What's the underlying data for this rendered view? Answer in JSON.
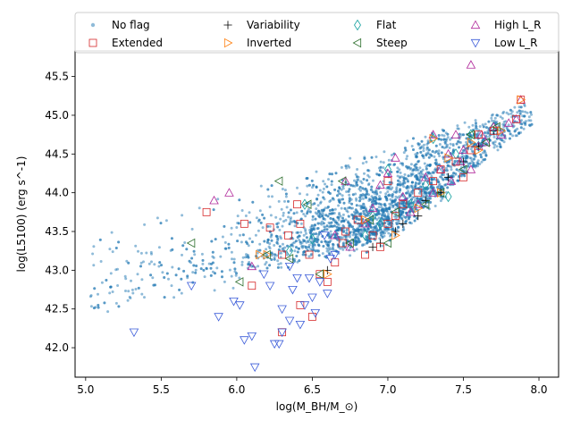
{
  "chart_data": {
    "type": "scatter",
    "title": "",
    "xlabel": "log(M_BH/M_⊙)",
    "ylabel": "log(L5100) (erg s^-1)",
    "xlim": [
      4.93,
      8.13
    ],
    "ylim": [
      41.62,
      45.83
    ],
    "xticks": [
      5.0,
      5.5,
      6.0,
      6.5,
      7.0,
      7.5,
      8.0
    ],
    "xtick_labels": [
      "5.0",
      "5.5",
      "6.0",
      "6.5",
      "7.0",
      "7.5",
      "8.0"
    ],
    "yticks": [
      42.0,
      42.5,
      43.0,
      43.5,
      44.0,
      44.5,
      45.0,
      45.5
    ],
    "ytick_labels": [
      "42.0",
      "42.5",
      "43.0",
      "43.5",
      "44.0",
      "44.5",
      "45.0",
      "45.5"
    ],
    "grid": false,
    "legend_position": "top",
    "legend": [
      {
        "key": "noflag",
        "label": "No flag",
        "color": "#1f77b4",
        "marker": "dot"
      },
      {
        "key": "variability",
        "label": "Variability",
        "color": "#000000",
        "marker": "plus"
      },
      {
        "key": "flat",
        "label": "Flat",
        "color": "#17a2a0",
        "marker": "diamond"
      },
      {
        "key": "highlr",
        "label": "High L_R",
        "color": "#b0279a",
        "marker": "triangle-up"
      },
      {
        "key": "extended",
        "label": "Extended",
        "color": "#d62728",
        "marker": "square"
      },
      {
        "key": "inverted",
        "label": "Inverted",
        "color": "#ff7f0e",
        "marker": "triangle-right"
      },
      {
        "key": "steep",
        "label": "Steep",
        "color": "#2c6e2c",
        "marker": "triangle-left"
      },
      {
        "key": "lowlr",
        "label": "Low L_R",
        "color": "#3a5bd9",
        "marker": "triangle-down"
      }
    ],
    "series": [
      {
        "key": "noflag",
        "name": "No flag",
        "approx_count": 3000,
        "x_range": [
          5.03,
          7.97
        ],
        "y_range": [
          41.75,
          45.25
        ],
        "trend": {
          "x": [
            5.0,
            6.0,
            7.0,
            8.0
          ],
          "y": [
            42.6,
            43.1,
            43.6,
            45.1
          ]
        }
      },
      {
        "key": "variability",
        "name": "Variability",
        "points": [
          [
            6.95,
            43.35
          ],
          [
            7.1,
            43.6
          ],
          [
            7.25,
            43.9
          ],
          [
            7.4,
            44.2
          ],
          [
            7.6,
            44.6
          ],
          [
            6.6,
            43.0
          ],
          [
            7.5,
            44.4
          ],
          [
            7.7,
            44.8
          ],
          [
            7.2,
            43.7
          ],
          [
            6.9,
            43.3
          ],
          [
            7.35,
            44.0
          ],
          [
            7.05,
            43.5
          ]
        ]
      },
      {
        "key": "flat",
        "name": "Flat",
        "points": [
          [
            6.45,
            43.85
          ],
          [
            6.35,
            43.25
          ],
          [
            6.9,
            43.7
          ],
          [
            7.15,
            43.85
          ],
          [
            7.3,
            44.7
          ],
          [
            7.55,
            44.75
          ],
          [
            7.4,
            43.95
          ],
          [
            6.85,
            43.45
          ],
          [
            7.0,
            44.3
          ],
          [
            7.25,
            44.1
          ],
          [
            7.7,
            44.85
          ],
          [
            6.5,
            43.4
          ],
          [
            7.6,
            44.6
          ],
          [
            6.95,
            43.6
          ],
          [
            7.45,
            44.5
          ]
        ]
      },
      {
        "key": "highlr",
        "name": "High L_R",
        "points": [
          [
            7.55,
            45.65
          ],
          [
            5.85,
            43.9
          ],
          [
            5.95,
            44.0
          ],
          [
            6.1,
            43.05
          ],
          [
            6.72,
            44.15
          ],
          [
            6.75,
            43.3
          ],
          [
            6.95,
            44.1
          ],
          [
            7.0,
            44.25
          ],
          [
            7.05,
            44.45
          ],
          [
            7.2,
            43.85
          ],
          [
            7.3,
            44.75
          ],
          [
            7.35,
            44.3
          ],
          [
            7.4,
            44.5
          ],
          [
            7.45,
            44.75
          ],
          [
            7.5,
            44.55
          ],
          [
            7.6,
            44.6
          ],
          [
            7.62,
            44.75
          ],
          [
            7.7,
            44.85
          ],
          [
            7.75,
            44.75
          ],
          [
            7.8,
            44.9
          ],
          [
            7.85,
            44.95
          ],
          [
            7.88,
            45.2
          ],
          [
            6.85,
            43.6
          ],
          [
            7.1,
            43.95
          ],
          [
            7.25,
            44.2
          ],
          [
            7.55,
            44.3
          ],
          [
            7.65,
            44.65
          ],
          [
            7.3,
            44.0
          ],
          [
            7.48,
            44.4
          ],
          [
            6.65,
            43.45
          ],
          [
            6.9,
            43.8
          ],
          [
            7.15,
            43.75
          ],
          [
            7.42,
            44.15
          ]
        ]
      },
      {
        "key": "extended",
        "name": "Extended",
        "points": [
          [
            5.8,
            43.75
          ],
          [
            6.05,
            43.6
          ],
          [
            6.22,
            43.55
          ],
          [
            6.3,
            43.2
          ],
          [
            6.34,
            43.45
          ],
          [
            6.4,
            43.85
          ],
          [
            6.42,
            43.6
          ],
          [
            6.48,
            43.2
          ],
          [
            6.5,
            42.4
          ],
          [
            6.55,
            42.95
          ],
          [
            6.6,
            42.85
          ],
          [
            6.65,
            43.1
          ],
          [
            6.7,
            43.35
          ],
          [
            6.72,
            43.5
          ],
          [
            6.8,
            43.65
          ],
          [
            6.85,
            43.2
          ],
          [
            6.9,
            43.45
          ],
          [
            6.95,
            43.3
          ],
          [
            7.0,
            43.6
          ],
          [
            7.05,
            43.7
          ],
          [
            7.1,
            43.85
          ],
          [
            7.2,
            44.0
          ],
          [
            7.3,
            44.15
          ],
          [
            7.35,
            44.3
          ],
          [
            7.45,
            44.4
          ],
          [
            7.5,
            44.2
          ],
          [
            7.55,
            44.55
          ],
          [
            7.6,
            44.75
          ],
          [
            7.7,
            44.8
          ],
          [
            7.85,
            44.95
          ],
          [
            7.88,
            45.2
          ],
          [
            6.42,
            42.55
          ],
          [
            6.1,
            42.8
          ],
          [
            6.3,
            42.2
          ],
          [
            7.0,
            44.15
          ]
        ]
      },
      {
        "key": "inverted",
        "name": "Inverted",
        "points": [
          [
            6.15,
            43.2
          ],
          [
            6.2,
            43.2
          ],
          [
            6.6,
            42.95
          ],
          [
            7.05,
            43.45
          ],
          [
            7.2,
            43.8
          ],
          [
            7.35,
            44.0
          ],
          [
            7.4,
            44.45
          ],
          [
            7.55,
            44.65
          ],
          [
            7.6,
            44.55
          ],
          [
            7.75,
            44.8
          ],
          [
            7.88,
            45.2
          ],
          [
            6.85,
            43.65
          ],
          [
            7.3,
            44.7
          ]
        ]
      },
      {
        "key": "steep",
        "name": "Steep",
        "points": [
          [
            5.7,
            43.35
          ],
          [
            6.02,
            42.85
          ],
          [
            6.2,
            43.2
          ],
          [
            6.28,
            44.15
          ],
          [
            6.35,
            43.15
          ],
          [
            6.47,
            43.85
          ],
          [
            6.55,
            42.95
          ],
          [
            6.7,
            44.15
          ],
          [
            6.75,
            43.35
          ],
          [
            6.88,
            43.65
          ],
          [
            7.0,
            43.35
          ],
          [
            7.05,
            43.75
          ],
          [
            7.25,
            43.85
          ],
          [
            7.35,
            44.0
          ],
          [
            7.5,
            44.3
          ],
          [
            7.55,
            44.75
          ],
          [
            7.65,
            44.65
          ],
          [
            7.72,
            44.85
          ]
        ]
      },
      {
        "key": "lowlr",
        "name": "Low L_R",
        "points": [
          [
            5.32,
            42.2
          ],
          [
            5.7,
            42.8
          ],
          [
            5.88,
            42.4
          ],
          [
            5.98,
            42.6
          ],
          [
            6.02,
            42.55
          ],
          [
            6.05,
            42.1
          ],
          [
            6.1,
            42.15
          ],
          [
            6.12,
            41.75
          ],
          [
            6.18,
            42.95
          ],
          [
            6.22,
            42.8
          ],
          [
            6.25,
            42.05
          ],
          [
            6.3,
            42.2
          ],
          [
            6.3,
            42.5
          ],
          [
            6.35,
            43.05
          ],
          [
            6.37,
            42.75
          ],
          [
            6.4,
            42.9
          ],
          [
            6.42,
            42.3
          ],
          [
            6.45,
            42.55
          ],
          [
            6.5,
            42.65
          ],
          [
            6.55,
            42.85
          ],
          [
            6.58,
            43.45
          ],
          [
            6.6,
            42.7
          ],
          [
            6.65,
            43.2
          ],
          [
            6.28,
            42.05
          ],
          [
            6.35,
            42.35
          ],
          [
            6.48,
            42.9
          ],
          [
            6.52,
            42.45
          ],
          [
            6.62,
            43.15
          ]
        ]
      }
    ]
  }
}
